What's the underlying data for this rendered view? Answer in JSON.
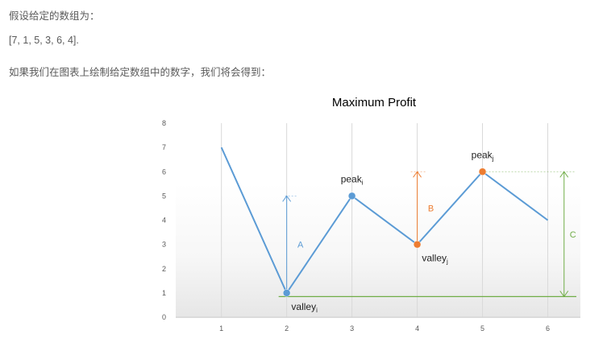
{
  "intro": {
    "line1": "假设给定的数组为：",
    "line2": "[7, 1, 5, 3, 6, 4].",
    "line3": "如果我们在图表上绘制给定数组中的数字，我们将会得到："
  },
  "chart_data": {
    "type": "line",
    "title": "Maximum Profit",
    "x": [
      1,
      2,
      3,
      4,
      5,
      6
    ],
    "values": [
      7,
      1,
      5,
      3,
      6,
      4
    ],
    "xticks": [
      "1",
      "2",
      "3",
      "4",
      "5",
      "6"
    ],
    "yticks": [
      "0",
      "1",
      "2",
      "3",
      "4",
      "5",
      "6",
      "7",
      "8"
    ],
    "ylim": [
      0,
      8
    ],
    "xlim": [
      0.3,
      6.5
    ],
    "grid": "vertical",
    "points": [
      {
        "x": 2,
        "y": 1,
        "color": "#5b9bd5",
        "label": "valley",
        "sub": "i",
        "pos": "below"
      },
      {
        "x": 3,
        "y": 5,
        "color": "#5b9bd5",
        "label": "peak",
        "sub": "i",
        "pos": "above"
      },
      {
        "x": 4,
        "y": 3,
        "color": "#ed7d31",
        "label": "valley",
        "sub": "j",
        "pos": "below"
      },
      {
        "x": 5,
        "y": 6,
        "color": "#ed7d31",
        "label": "peak",
        "sub": "j",
        "pos": "above"
      }
    ],
    "annotations": [
      {
        "label": "A",
        "x": 2,
        "y_from": 1,
        "y_to": 5,
        "color": "#5b9bd5"
      },
      {
        "label": "B",
        "x": 4,
        "y_from": 3,
        "y_to": 6,
        "color": "#ed7d31"
      },
      {
        "label": "C",
        "x": 6.25,
        "y_from": 0.85,
        "y_to": 6,
        "color": "#70ad47"
      }
    ],
    "baseline": {
      "y": 0.85,
      "color": "#70ad47"
    },
    "colors": {
      "line": "#5b9bd5",
      "tick": "#595959",
      "grid": "#d9d9d9",
      "title": "#595959",
      "label": "#222222"
    }
  }
}
